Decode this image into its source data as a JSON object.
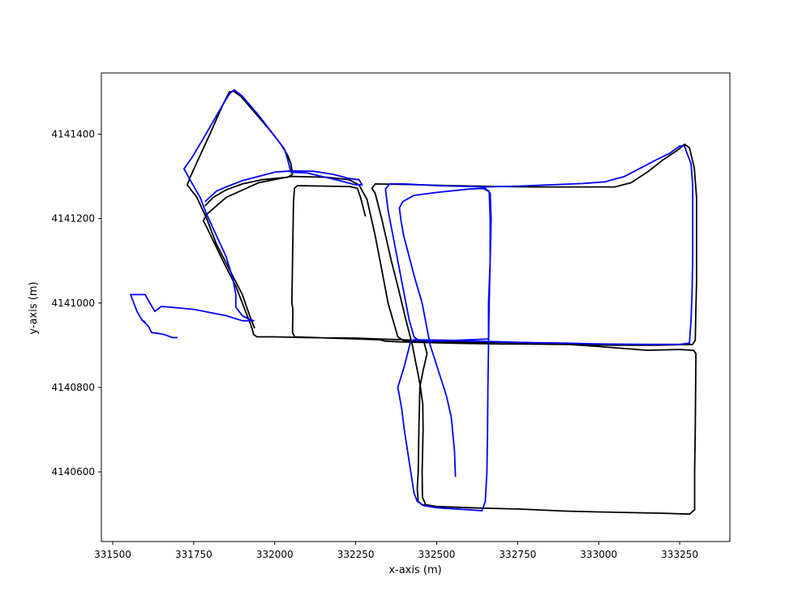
{
  "chart_data": {
    "type": "line",
    "title": "",
    "xlabel": "x-axis (m)",
    "ylabel": "y-axis (m)",
    "xlim": [
      331465,
      333405
    ],
    "ylim": [
      4140435,
      4141545
    ],
    "xticks": [
      331500,
      331750,
      332000,
      332250,
      332500,
      332750,
      333000,
      333250
    ],
    "yticks": [
      4140600,
      4140800,
      4141000,
      4141200,
      4141400
    ],
    "grid": false,
    "legend": "none",
    "series": [
      {
        "color": "#000000",
        "points": [
          [
            332280,
            4141205
          ],
          [
            332265,
            4141250
          ],
          [
            332255,
            4141272
          ],
          [
            332232,
            4141276
          ],
          [
            332070,
            4141278
          ],
          [
            332061,
            4141272
          ],
          [
            332058,
            4141240
          ],
          [
            332055,
            4141100
          ],
          [
            332053,
            4141000
          ],
          [
            332056,
            4140985
          ],
          [
            332055,
            4140930
          ],
          [
            332062,
            4140920
          ],
          [
            332250,
            4140915
          ],
          [
            332325,
            4140913
          ],
          [
            332340,
            4140910
          ],
          [
            332385,
            4140908
          ],
          [
            332440,
            4140907
          ],
          [
            332550,
            4140905
          ],
          [
            332700,
            4140903
          ],
          [
            332900,
            4140902
          ],
          [
            333050,
            4140900
          ],
          [
            333180,
            4140900
          ],
          [
            333290,
            4140902
          ],
          [
            333298,
            4140912
          ],
          [
            333300,
            4140990
          ],
          [
            333302,
            4141050
          ],
          [
            333302,
            4141250
          ],
          [
            333295,
            4141320
          ],
          [
            333280,
            4141368
          ],
          [
            333265,
            4141376
          ],
          [
            333240,
            4141360
          ],
          [
            333200,
            4141340
          ],
          [
            333150,
            4141310
          ],
          [
            333100,
            4141285
          ],
          [
            333050,
            4141275
          ],
          [
            332900,
            4141275
          ],
          [
            332800,
            4141275
          ],
          [
            332700,
            4141276
          ],
          [
            332550,
            4141278
          ],
          [
            332400,
            4141281
          ],
          [
            332310,
            4141282
          ],
          [
            332300,
            4141272
          ],
          [
            332310,
            4141260
          ],
          [
            332330,
            4141200
          ],
          [
            332360,
            4141100
          ],
          [
            332380,
            4141040
          ],
          [
            332405,
            4140960
          ],
          [
            332425,
            4140900
          ],
          [
            332435,
            4140860
          ],
          [
            332443,
            4140830
          ],
          [
            332450,
            4140800
          ],
          [
            332457,
            4140760
          ],
          [
            332458,
            4140700
          ],
          [
            332455,
            4140600
          ],
          [
            332456,
            4140540
          ],
          [
            332466,
            4140522
          ],
          [
            332500,
            4140518
          ],
          [
            332600,
            4140515
          ],
          [
            332750,
            4140512
          ],
          [
            332900,
            4140507
          ],
          [
            333000,
            4140505
          ],
          [
            333200,
            4140502
          ],
          [
            333280,
            4140500
          ],
          [
            333296,
            4140510
          ],
          [
            333296,
            4140600
          ],
          [
            333298,
            4140700
          ],
          [
            333300,
            4140880
          ],
          [
            333293,
            4140888
          ],
          [
            333250,
            4140890
          ],
          [
            333150,
            4140888
          ],
          [
            333000,
            4140897
          ],
          [
            332850,
            4140905
          ],
          [
            332700,
            4140907
          ],
          [
            332550,
            4140908
          ],
          [
            332430,
            4140910
          ],
          [
            332400,
            4140910
          ],
          [
            332380,
            4140920
          ],
          [
            332350,
            4141000
          ],
          [
            332330,
            4141080
          ],
          [
            332310,
            4141160
          ],
          [
            332285,
            4141245
          ],
          [
            332260,
            4141280
          ],
          [
            332230,
            4141292
          ],
          [
            332160,
            4141298
          ],
          [
            332050,
            4141300
          ],
          [
            331950,
            4141285
          ],
          [
            331850,
            4141250
          ],
          [
            331790,
            4141210
          ],
          [
            331780,
            4141195
          ],
          [
            331790,
            4141180
          ],
          [
            331840,
            4141100
          ],
          [
            331880,
            4141040
          ],
          [
            331910,
            4140980
          ],
          [
            331930,
            4140940
          ],
          [
            331935,
            4140925
          ],
          [
            331945,
            4140920
          ],
          [
            332000,
            4140920
          ],
          [
            332100,
            4140918
          ],
          [
            332250,
            4140917
          ],
          [
            332320,
            4140915
          ],
          [
            332400,
            4140913
          ],
          [
            332460,
            4140910
          ],
          [
            332470,
            4140880
          ],
          [
            332458,
            4140840
          ],
          [
            332448,
            4140800
          ],
          [
            332445,
            4140700
          ],
          [
            332443,
            4140600
          ],
          [
            332440,
            4140560
          ],
          [
            332443,
            4140530
          ],
          [
            332455,
            4140522
          ],
          [
            332500,
            4140518
          ]
        ]
      },
      {
        "color": "#000000",
        "points": [
          [
            331785,
            4141230
          ],
          [
            331810,
            4141250
          ],
          [
            331850,
            4141268
          ],
          [
            331900,
            4141282
          ],
          [
            331960,
            4141292
          ],
          [
            332040,
            4141298
          ],
          [
            332055,
            4141305
          ],
          [
            332050,
            4141330
          ],
          [
            332040,
            4141350
          ],
          [
            332020,
            4141375
          ],
          [
            331990,
            4141405
          ],
          [
            331940,
            4141450
          ],
          [
            331895,
            4141490
          ],
          [
            331872,
            4141502
          ],
          [
            331860,
            4141500
          ],
          [
            331840,
            4141470
          ],
          [
            331800,
            4141400
          ],
          [
            331770,
            4141350
          ],
          [
            331740,
            4141300
          ],
          [
            331730,
            4141280
          ],
          [
            331760,
            4141250
          ],
          [
            331790,
            4141200
          ],
          [
            331820,
            4141140
          ],
          [
            331860,
            4141080
          ],
          [
            331900,
            4141020
          ],
          [
            331925,
            4140965
          ],
          [
            331938,
            4140940
          ]
        ]
      },
      {
        "color": "#0000ff",
        "points": [
          [
            332558,
            4140588
          ],
          [
            332555,
            4140650
          ],
          [
            332545,
            4140730
          ],
          [
            332530,
            4140780
          ],
          [
            332505,
            4140840
          ],
          [
            332480,
            4140900
          ],
          [
            332470,
            4140940
          ],
          [
            332455,
            4141000
          ],
          [
            332432,
            4141060
          ],
          [
            332415,
            4141110
          ],
          [
            332398,
            4141160
          ],
          [
            332390,
            4141195
          ],
          [
            332385,
            4141225
          ],
          [
            332395,
            4141240
          ],
          [
            332430,
            4141255
          ],
          [
            332500,
            4141262
          ],
          [
            332600,
            4141270
          ],
          [
            332650,
            4141272
          ],
          [
            332665,
            4141260
          ],
          [
            332668,
            4141200
          ],
          [
            332665,
            4141100
          ],
          [
            332660,
            4141000
          ],
          [
            332660,
            4140915
          ],
          [
            332600,
            4140913
          ],
          [
            332500,
            4140910
          ],
          [
            332445,
            4140911
          ],
          [
            332430,
            4140920
          ],
          [
            332415,
            4140960
          ],
          [
            332400,
            4141020
          ],
          [
            332385,
            4141080
          ],
          [
            332365,
            4141160
          ],
          [
            332350,
            4141220
          ],
          [
            332342,
            4141270
          ],
          [
            332355,
            4141282
          ],
          [
            332400,
            4141282
          ],
          [
            332500,
            4141278
          ],
          [
            332650,
            4141275
          ],
          [
            332750,
            4141277
          ],
          [
            332850,
            4141280
          ],
          [
            332950,
            4141283
          ],
          [
            333020,
            4141287
          ],
          [
            333080,
            4141300
          ],
          [
            333130,
            4141320
          ],
          [
            333180,
            4141340
          ],
          [
            333220,
            4141355
          ],
          [
            333250,
            4141372
          ],
          [
            333265,
            4141372
          ],
          [
            333270,
            4141360
          ],
          [
            333285,
            4141330
          ],
          [
            333290,
            4141280
          ],
          [
            333290,
            4141200
          ],
          [
            333290,
            4141100
          ],
          [
            333288,
            4141020
          ],
          [
            333285,
            4140960
          ],
          [
            333280,
            4140905
          ],
          [
            333250,
            4140902
          ],
          [
            333150,
            4140902
          ],
          [
            333000,
            4140903
          ],
          [
            332900,
            4140905
          ],
          [
            332800,
            4140906
          ],
          [
            332700,
            4140908
          ],
          [
            332600,
            4140910
          ],
          [
            332530,
            4140912
          ],
          [
            332430,
            4140913
          ],
          [
            332420,
            4140910
          ],
          [
            332410,
            4140880
          ],
          [
            332400,
            4140850
          ],
          [
            332380,
            4140800
          ],
          [
            332385,
            4140780
          ],
          [
            332392,
            4140750
          ],
          [
            332400,
            4140700
          ],
          [
            332410,
            4140650
          ],
          [
            332430,
            4140550
          ],
          [
            332440,
            4140530
          ],
          [
            332460,
            4140520
          ],
          [
            332500,
            4140515
          ],
          [
            332600,
            4140510
          ],
          [
            332640,
            4140508
          ],
          [
            332650,
            4140530
          ],
          [
            332655,
            4140600
          ],
          [
            332657,
            4140700
          ],
          [
            332658,
            4140800
          ],
          [
            332660,
            4140900
          ],
          [
            332662,
            4141000
          ],
          [
            332665,
            4141100
          ],
          [
            332665,
            4141200
          ],
          [
            332662,
            4141265
          ],
          [
            332640,
            4141272
          ]
        ]
      },
      {
        "color": "#0000ff",
        "points": [
          [
            331785,
            4141240
          ],
          [
            331820,
            4141265
          ],
          [
            331850,
            4141275
          ],
          [
            331900,
            4141290
          ],
          [
            331950,
            4141300
          ],
          [
            332000,
            4141310
          ],
          [
            332050,
            4141313
          ],
          [
            332120,
            4141312
          ],
          [
            332180,
            4141305
          ],
          [
            332230,
            4141295
          ],
          [
            332260,
            4141292
          ],
          [
            332270,
            4141280
          ],
          [
            332250,
            4141280
          ],
          [
            332200,
            4141290
          ],
          [
            332100,
            4141308
          ],
          [
            332050,
            4141310
          ],
          [
            332040,
            4141340
          ],
          [
            332030,
            4141365
          ],
          [
            332000,
            4141395
          ],
          [
            331950,
            4141445
          ],
          [
            331900,
            4141490
          ],
          [
            331875,
            4141505
          ],
          [
            331860,
            4141495
          ],
          [
            331840,
            4141470
          ],
          [
            331810,
            4141430
          ],
          [
            331780,
            4141390
          ],
          [
            331745,
            4141345
          ],
          [
            331720,
            4141318
          ],
          [
            331740,
            4141290
          ],
          [
            331770,
            4141250
          ],
          [
            331790,
            4141210
          ],
          [
            331820,
            4141160
          ],
          [
            331850,
            4141110
          ],
          [
            331870,
            4141060
          ],
          [
            331880,
            4141020
          ],
          [
            331880,
            4140990
          ],
          [
            331900,
            4140970
          ],
          [
            331920,
            4140962
          ],
          [
            331935,
            4140958
          ],
          [
            331900,
            4140958
          ],
          [
            331850,
            4140970
          ],
          [
            331750,
            4140985
          ],
          [
            331680,
            4140990
          ],
          [
            331650,
            4140992
          ],
          [
            331630,
            4140980
          ],
          [
            331600,
            4141020
          ],
          [
            331555,
            4141020
          ],
          [
            331575,
            4140980
          ],
          [
            331590,
            4140960
          ],
          [
            331600,
            4140955
          ],
          [
            331590,
            4140960
          ],
          [
            331610,
            4140945
          ],
          [
            331620,
            4140930
          ],
          [
            331640,
            4140928
          ],
          [
            331660,
            4140925
          ],
          [
            331685,
            4140918
          ],
          [
            331700,
            4140918
          ]
        ]
      }
    ]
  }
}
